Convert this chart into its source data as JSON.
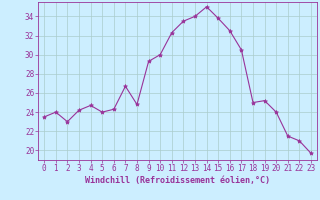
{
  "x": [
    0,
    1,
    2,
    3,
    4,
    5,
    6,
    7,
    8,
    9,
    10,
    11,
    12,
    13,
    14,
    15,
    16,
    17,
    18,
    19,
    20,
    21,
    22,
    23
  ],
  "y": [
    23.5,
    24.0,
    23.0,
    24.2,
    24.7,
    24.0,
    24.3,
    26.7,
    24.8,
    29.3,
    30.0,
    32.3,
    33.5,
    34.0,
    35.0,
    33.8,
    32.5,
    30.5,
    25.0,
    25.2,
    24.0,
    21.5,
    21.0,
    19.7
  ],
  "line_color": "#993399",
  "marker": "*",
  "marker_size": 3,
  "bg_color": "#cceeff",
  "grid_color": "#aacccc",
  "xlabel": "Windchill (Refroidissement éolien,°C)",
  "ylabel_ticks": [
    20,
    22,
    24,
    26,
    28,
    30,
    32,
    34
  ],
  "ylim": [
    19.0,
    35.5
  ],
  "xlim": [
    -0.5,
    23.5
  ],
  "axis_color": "#993399",
  "tick_color": "#993399",
  "label_color": "#993399",
  "tick_fontsize": 5.5,
  "xlabel_fontsize": 6.0
}
